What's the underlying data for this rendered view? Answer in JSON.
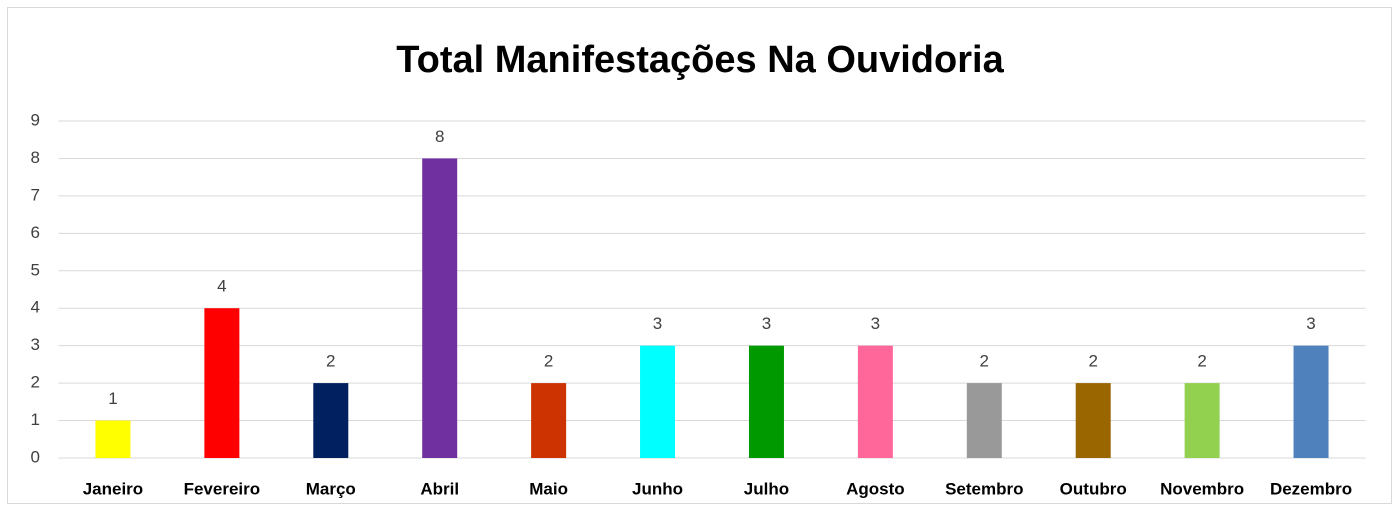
{
  "chart_data": {
    "type": "bar",
    "title": "Total Manifestações Na Ouvidoria",
    "categories": [
      "Janeiro",
      "Fevereiro",
      "Março",
      "Abril",
      "Maio",
      "Junho",
      "Julho",
      "Agosto",
      "Setembro",
      "Outubro",
      "Novembro",
      "Dezembro"
    ],
    "values": [
      1,
      4,
      2,
      8,
      2,
      3,
      3,
      3,
      2,
      2,
      2,
      3
    ],
    "colors": [
      "#FFFF00",
      "#FF0000",
      "#002060",
      "#7030A0",
      "#CC3300",
      "#00FFFF",
      "#009900",
      "#FF6699",
      "#999999",
      "#996600",
      "#92D050",
      "#4F81BD"
    ],
    "ylim": [
      0,
      9
    ],
    "yticks": [
      0,
      1,
      2,
      3,
      4,
      5,
      6,
      7,
      8,
      9
    ],
    "grid": true
  }
}
